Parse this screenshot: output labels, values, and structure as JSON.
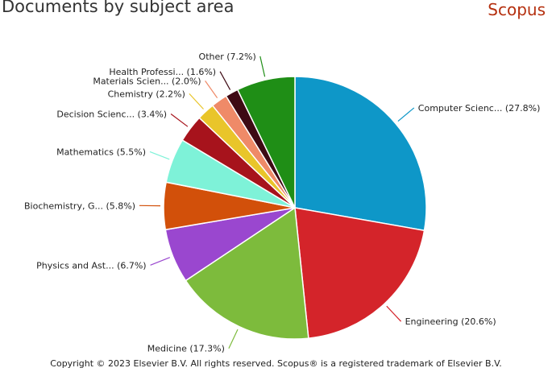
{
  "header": {
    "title": "Documents by subject area",
    "brand": "Scopus"
  },
  "footer": {
    "copyright": "Copyright © 2023 Elsevier B.V. All rights reserved. Scopus® is a registered trademark of Elsevier B.V."
  },
  "chart_data": {
    "type": "pie",
    "title": "Documents by subject area",
    "legend": "none",
    "slices": [
      {
        "label": "Computer Scienc...",
        "percent": 27.8,
        "color": "#0e97c8"
      },
      {
        "label": "Engineering",
        "percent": 20.6,
        "color": "#d4242a"
      },
      {
        "label": "Medicine",
        "percent": 17.3,
        "color": "#7dbb3c"
      },
      {
        "label": "Physics and Ast...",
        "percent": 6.7,
        "color": "#9a47cf"
      },
      {
        "label": "Biochemistry, G...",
        "percent": 5.8,
        "color": "#d2500a"
      },
      {
        "label": "Mathematics",
        "percent": 5.5,
        "color": "#7ef2d8"
      },
      {
        "label": "Decision Scienc...",
        "percent": 3.4,
        "color": "#a7131c"
      },
      {
        "label": "Chemistry",
        "percent": 2.2,
        "color": "#e9c52a"
      },
      {
        "label": "Materials Scien...",
        "percent": 2.0,
        "color": "#ef8a68"
      },
      {
        "label": "Health Professi...",
        "percent": 1.6,
        "color": "#3e0a14"
      },
      {
        "label": "Other",
        "percent": 7.2,
        "color": "#1f8e16"
      }
    ]
  }
}
